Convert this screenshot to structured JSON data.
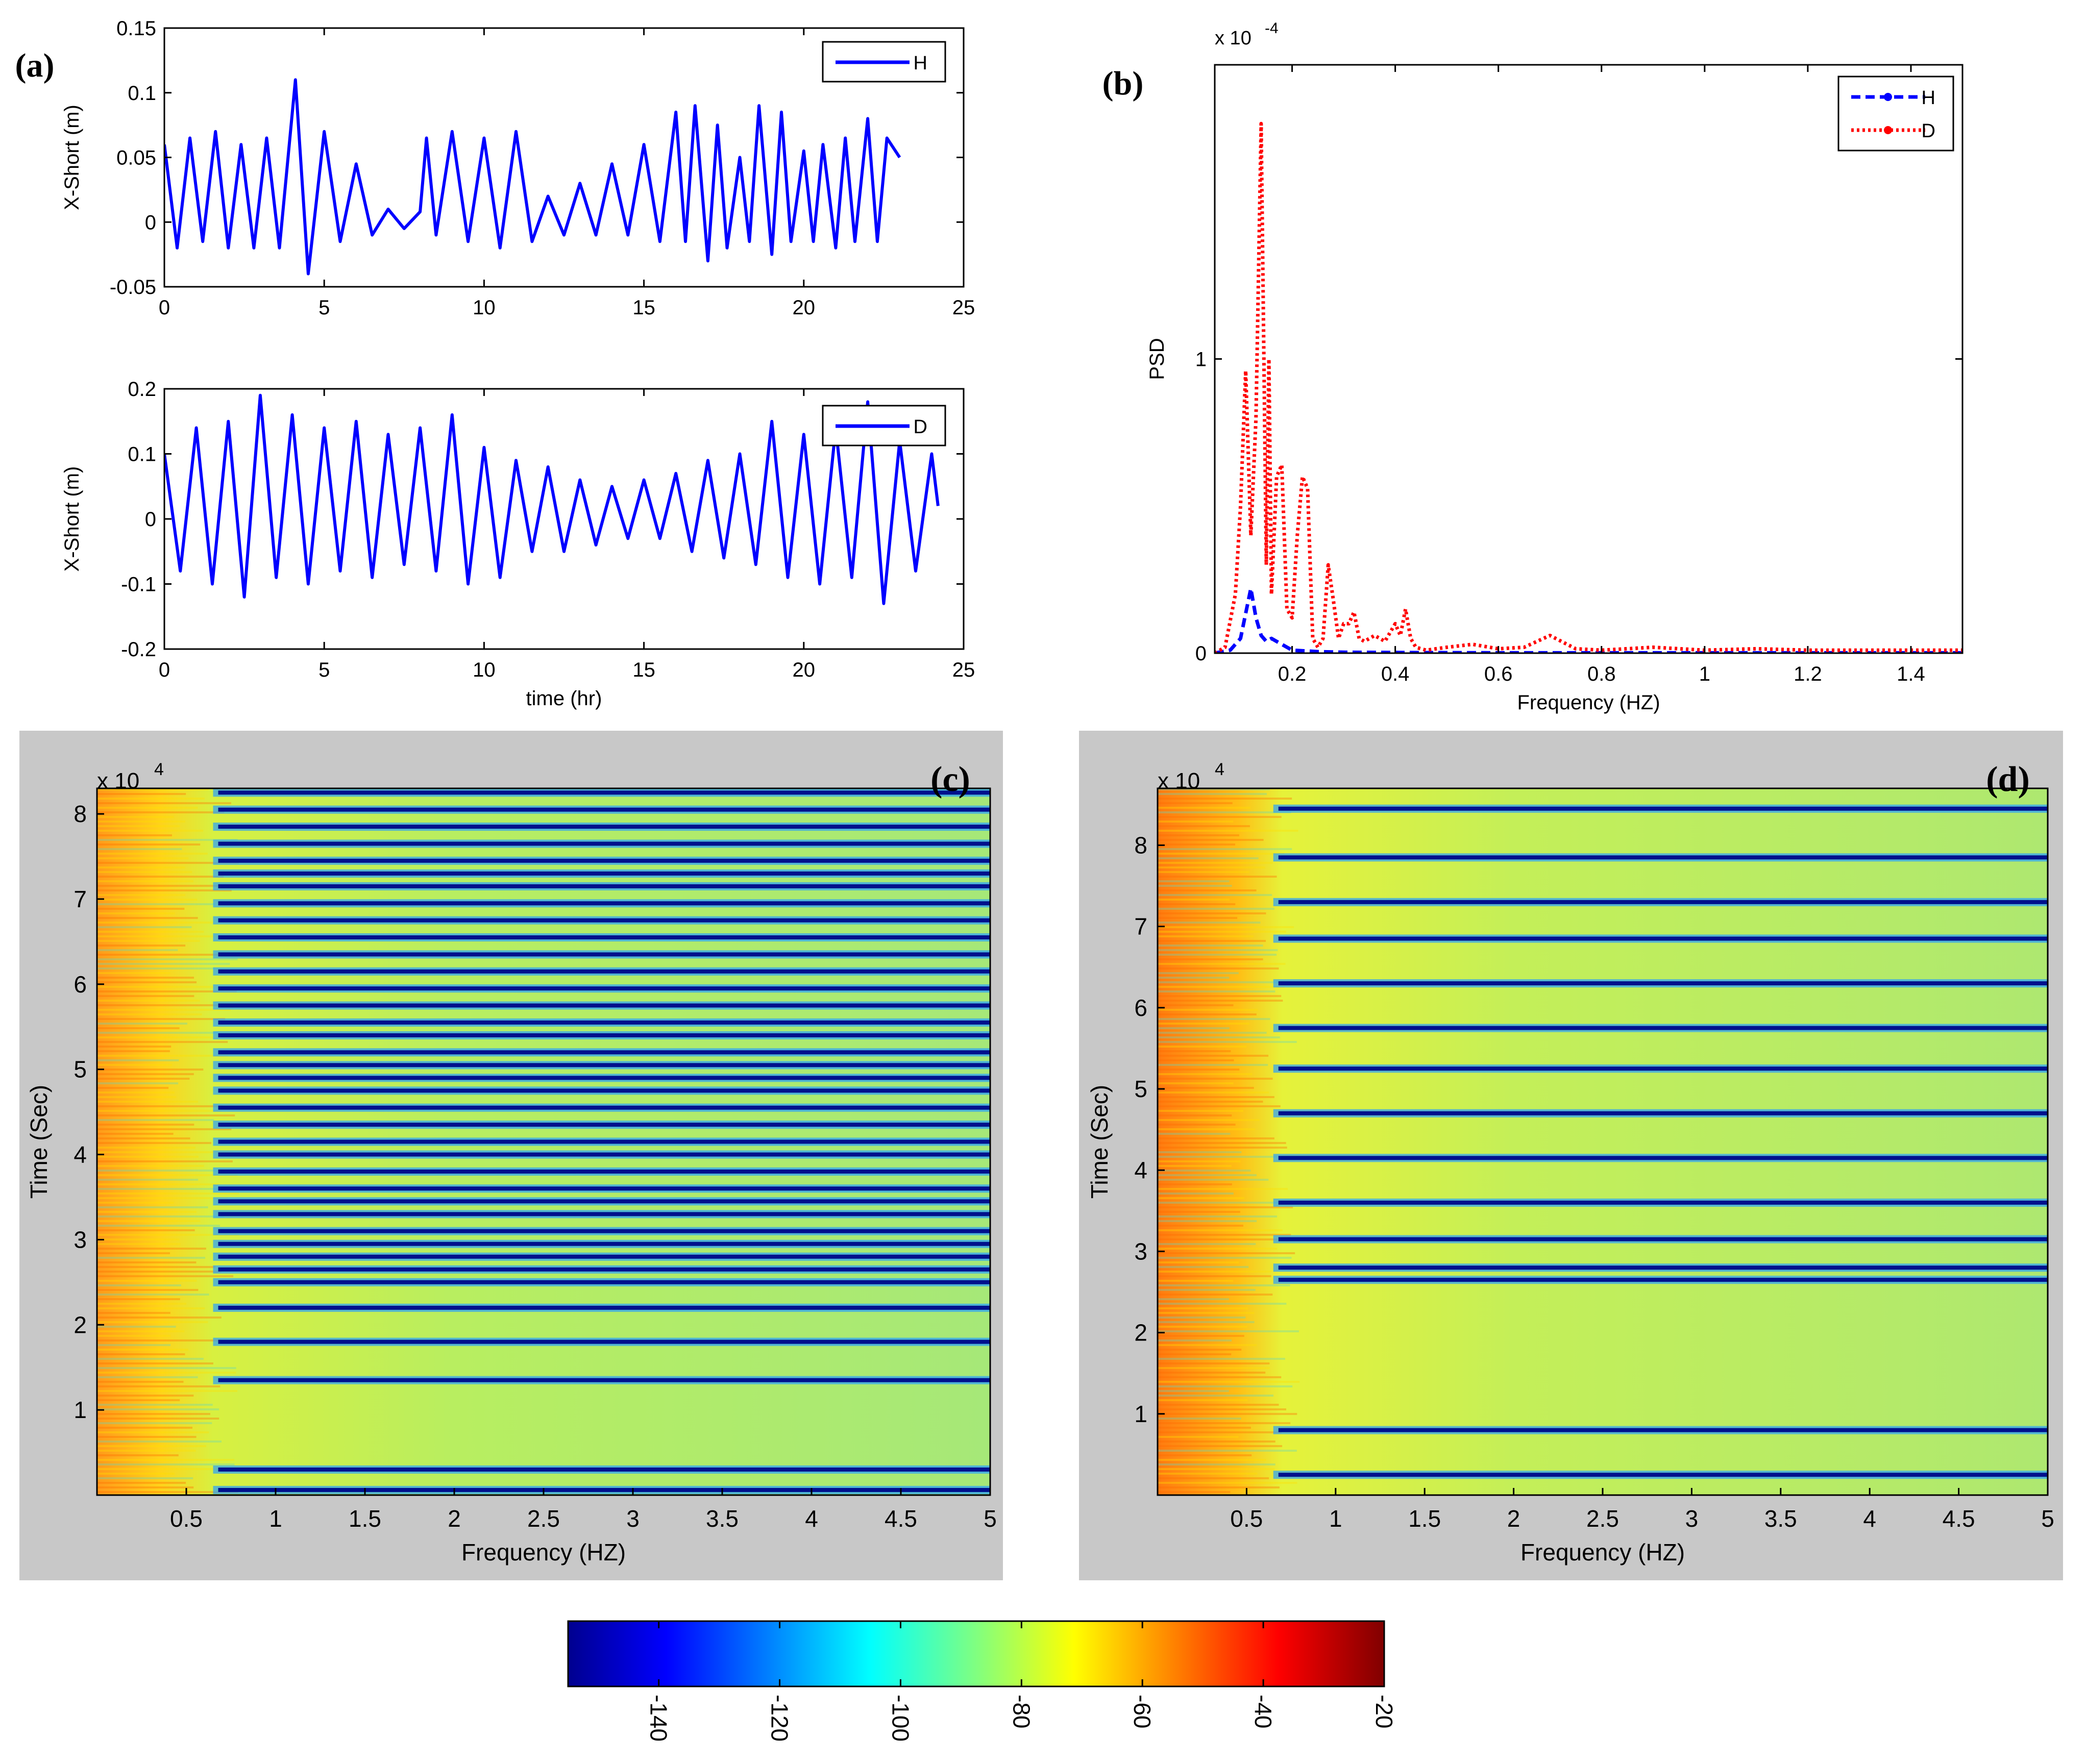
{
  "chart_data": [
    {
      "id": "a1",
      "type": "line",
      "panel_label": "(a)",
      "ylabel": "X-Short (m)",
      "xlabel": "",
      "xlim": [
        0,
        25
      ],
      "ylim": [
        -0.05,
        0.15
      ],
      "xticks": [
        0,
        5,
        10,
        15,
        20,
        25
      ],
      "xtick_labels": [
        "0",
        "5",
        "10",
        "15",
        "20",
        "25"
      ],
      "yticks": [
        -0.05,
        0,
        0.05,
        0.1,
        0.15
      ],
      "ytick_labels": [
        "-0.05",
        "0",
        "0.05",
        "0.1",
        "0.15"
      ],
      "legend": [
        "H"
      ],
      "series": [
        {
          "name": "H",
          "color": "#0000ff",
          "x": [
            0,
            0.4,
            0.8,
            1.2,
            1.6,
            2,
            2.4,
            2.8,
            3.2,
            3.6,
            4.1,
            4.5,
            5,
            5.5,
            6,
            6.5,
            7,
            7.5,
            8,
            8.2,
            8.5,
            9,
            9.5,
            10,
            10.5,
            11,
            11.5,
            12,
            12.5,
            13,
            13.5,
            14,
            14.5,
            15,
            15.5,
            16,
            16.3,
            16.6,
            17,
            17.3,
            17.6,
            18,
            18.3,
            18.6,
            19,
            19.3,
            19.6,
            20,
            20.3,
            20.6,
            21,
            21.3,
            21.6,
            22,
            22.3,
            22.6,
            23
          ],
          "y": [
            0.06,
            -0.02,
            0.065,
            -0.015,
            0.07,
            -0.02,
            0.06,
            -0.02,
            0.065,
            -0.02,
            0.11,
            -0.04,
            0.07,
            -0.015,
            0.045,
            -0.01,
            0.01,
            -0.005,
            0.008,
            0.065,
            -0.01,
            0.07,
            -0.015,
            0.065,
            -0.02,
            0.07,
            -0.015,
            0.02,
            -0.01,
            0.03,
            -0.01,
            0.045,
            -0.01,
            0.06,
            -0.015,
            0.085,
            -0.015,
            0.09,
            -0.03,
            0.075,
            -0.02,
            0.05,
            -0.015,
            0.09,
            -0.025,
            0.085,
            -0.015,
            0.055,
            -0.015,
            0.06,
            -0.02,
            0.065,
            -0.015,
            0.08,
            -0.015,
            0.065,
            0.05
          ]
        }
      ]
    },
    {
      "id": "a2",
      "type": "line",
      "panel_label": "",
      "ylabel": "X-Short (m)",
      "xlabel": "time (hr)",
      "xlim": [
        0,
        25
      ],
      "ylim": [
        -0.2,
        0.2
      ],
      "xticks": [
        0,
        5,
        10,
        15,
        20,
        25
      ],
      "xtick_labels": [
        "0",
        "5",
        "10",
        "15",
        "20",
        "25"
      ],
      "yticks": [
        -0.2,
        -0.1,
        0,
        0.1,
        0.2
      ],
      "ytick_labels": [
        "-0.2",
        "-0.1",
        "0",
        "0.1",
        "0.2"
      ],
      "legend": [
        "D"
      ],
      "series": [
        {
          "name": "D",
          "color": "#0000ff",
          "x": [
            0,
            0.5,
            1,
            1.5,
            2,
            2.5,
            3,
            3.5,
            4,
            4.5,
            5,
            5.5,
            6,
            6.5,
            7,
            7.5,
            8,
            8.5,
            9,
            9.5,
            10,
            10.5,
            11,
            11.5,
            12,
            12.5,
            13,
            13.5,
            14,
            14.5,
            15,
            15.5,
            16,
            16.5,
            17,
            17.5,
            18,
            18.5,
            19,
            19.5,
            20,
            20.5,
            21,
            21.5,
            22,
            22.5,
            23,
            23.5,
            24,
            24.2
          ],
          "y": [
            0.1,
            -0.08,
            0.14,
            -0.1,
            0.15,
            -0.12,
            0.19,
            -0.09,
            0.16,
            -0.1,
            0.14,
            -0.08,
            0.15,
            -0.09,
            0.13,
            -0.07,
            0.14,
            -0.08,
            0.16,
            -0.1,
            0.11,
            -0.09,
            0.09,
            -0.05,
            0.08,
            -0.05,
            0.06,
            -0.04,
            0.05,
            -0.03,
            0.06,
            -0.03,
            0.07,
            -0.05,
            0.09,
            -0.06,
            0.1,
            -0.07,
            0.15,
            -0.09,
            0.13,
            -0.1,
            0.14,
            -0.09,
            0.18,
            -0.13,
            0.12,
            -0.08,
            0.1,
            0.02
          ]
        }
      ]
    },
    {
      "id": "b",
      "type": "line",
      "panel_label": "(b)",
      "ylabel": "PSD",
      "xlabel": "Frequency (HZ)",
      "exponent_label": "x 10",
      "exponent_power": "-4",
      "xlim": [
        0.05,
        1.5
      ],
      "ylim": [
        0,
        2
      ],
      "xticks": [
        0.2,
        0.4,
        0.6,
        0.8,
        1,
        1.2,
        1.4
      ],
      "xtick_labels": [
        "0.2",
        "0.4",
        "0.6",
        "0.8",
        "1",
        "1.2",
        "1.4"
      ],
      "yticks": [
        0,
        1
      ],
      "ytick_labels": [
        "0",
        "1"
      ],
      "legend": [
        "H",
        "D"
      ],
      "series": [
        {
          "name": "H",
          "color": "#0000ff",
          "style": "dashed",
          "x": [
            0.05,
            0.08,
            0.1,
            0.12,
            0.13,
            0.14,
            0.15,
            0.16,
            0.18,
            0.2,
            0.25,
            0.3,
            0.4,
            0.6,
            0.8,
            1,
            1.2,
            1.5
          ],
          "y": [
            0,
            0.01,
            0.05,
            0.22,
            0.12,
            0.06,
            0.04,
            0.05,
            0.03,
            0.01,
            0.005,
            0.003,
            0.002,
            0.001,
            0.001,
            0.001,
            0.001,
            0.001
          ]
        },
        {
          "name": "D",
          "color": "#ff0000",
          "style": "dotted",
          "x": [
            0.05,
            0.07,
            0.09,
            0.1,
            0.11,
            0.12,
            0.13,
            0.14,
            0.15,
            0.155,
            0.16,
            0.17,
            0.18,
            0.19,
            0.2,
            0.21,
            0.22,
            0.23,
            0.24,
            0.25,
            0.26,
            0.27,
            0.28,
            0.29,
            0.3,
            0.31,
            0.32,
            0.33,
            0.34,
            0.36,
            0.38,
            0.4,
            0.41,
            0.42,
            0.43,
            0.44,
            0.46,
            0.5,
            0.55,
            0.6,
            0.65,
            0.7,
            0.75,
            0.8,
            0.9,
            1,
            1.1,
            1.2,
            1.3,
            1.4,
            1.5
          ],
          "y": [
            0,
            0.02,
            0.2,
            0.5,
            0.96,
            0.4,
            0.8,
            1.8,
            0.3,
            1.0,
            0.2,
            0.6,
            0.64,
            0.15,
            0.12,
            0.4,
            0.6,
            0.56,
            0.05,
            0.02,
            0.05,
            0.3,
            0.18,
            0.05,
            0.1,
            0.1,
            0.14,
            0.05,
            0.04,
            0.06,
            0.04,
            0.1,
            0.06,
            0.15,
            0.05,
            0.02,
            0.01,
            0.02,
            0.03,
            0.015,
            0.02,
            0.06,
            0.015,
            0.01,
            0.02,
            0.01,
            0.015,
            0.01,
            0.01,
            0.01,
            0.01
          ]
        }
      ]
    },
    {
      "id": "c",
      "type": "heatmap",
      "panel_label": "(c)",
      "ylabel": "Time (Sec)",
      "xlabel": "Frequency (HZ)",
      "exponent_label": "x 10",
      "exponent_power": "4",
      "xlim": [
        0,
        5
      ],
      "ylim": [
        0,
        8.3
      ],
      "xticks": [
        0.5,
        1,
        1.5,
        2,
        2.5,
        3,
        3.5,
        4,
        4.5,
        5
      ],
      "xtick_labels": [
        "0.5",
        "1",
        "1.5",
        "2",
        "2.5",
        "3",
        "3.5",
        "4",
        "4.5",
        "5"
      ],
      "yticks": [
        1,
        2,
        3,
        4,
        5,
        6,
        7,
        8
      ],
      "ytick_labels": [
        "1",
        "2",
        "3",
        "4",
        "5",
        "6",
        "7",
        "8"
      ],
      "dark_lines_time": [
        0.06,
        0.3,
        1.35,
        1.8,
        2.2,
        2.5,
        2.65,
        2.8,
        2.95,
        3.1,
        3.3,
        3.45,
        3.6,
        3.8,
        4.0,
        4.15,
        4.35,
        4.55,
        4.75,
        4.9,
        5.05,
        5.2,
        5.4,
        5.55,
        5.75,
        5.95,
        6.15,
        6.35,
        6.55,
        6.75,
        6.95,
        7.15,
        7.3,
        7.45,
        7.65,
        7.85,
        8.05,
        8.25
      ]
    },
    {
      "id": "d",
      "type": "heatmap",
      "panel_label": "(d)",
      "ylabel": "Time (Sec)",
      "xlabel": "Frequency (HZ)",
      "exponent_label": "x 10",
      "exponent_power": "4",
      "xlim": [
        0,
        5
      ],
      "ylim": [
        0,
        8.7
      ],
      "xticks": [
        0.5,
        1,
        1.5,
        2,
        2.5,
        3,
        3.5,
        4,
        4.5,
        5
      ],
      "xtick_labels": [
        "0.5",
        "1",
        "1.5",
        "2",
        "2.5",
        "3",
        "3.5",
        "4",
        "4.5",
        "5"
      ],
      "yticks": [
        1,
        2,
        3,
        4,
        5,
        6,
        7,
        8
      ],
      "ytick_labels": [
        "1",
        "2",
        "3",
        "4",
        "5",
        "6",
        "7",
        "8"
      ],
      "dark_lines_time": [
        0.25,
        0.8,
        2.65,
        2.8,
        3.15,
        3.6,
        4.15,
        4.7,
        5.25,
        5.75,
        6.3,
        6.85,
        7.3,
        7.85,
        8.45
      ]
    },
    {
      "id": "colorbar",
      "type": "heatmap",
      "clim": [
        -155,
        -20
      ],
      "ticks": [
        -140,
        -120,
        -100,
        -80,
        -60,
        -40,
        -20
      ],
      "tick_labels": [
        "-140",
        "-120",
        "-100",
        "-80",
        "-60",
        "-40",
        "-20"
      ]
    }
  ]
}
